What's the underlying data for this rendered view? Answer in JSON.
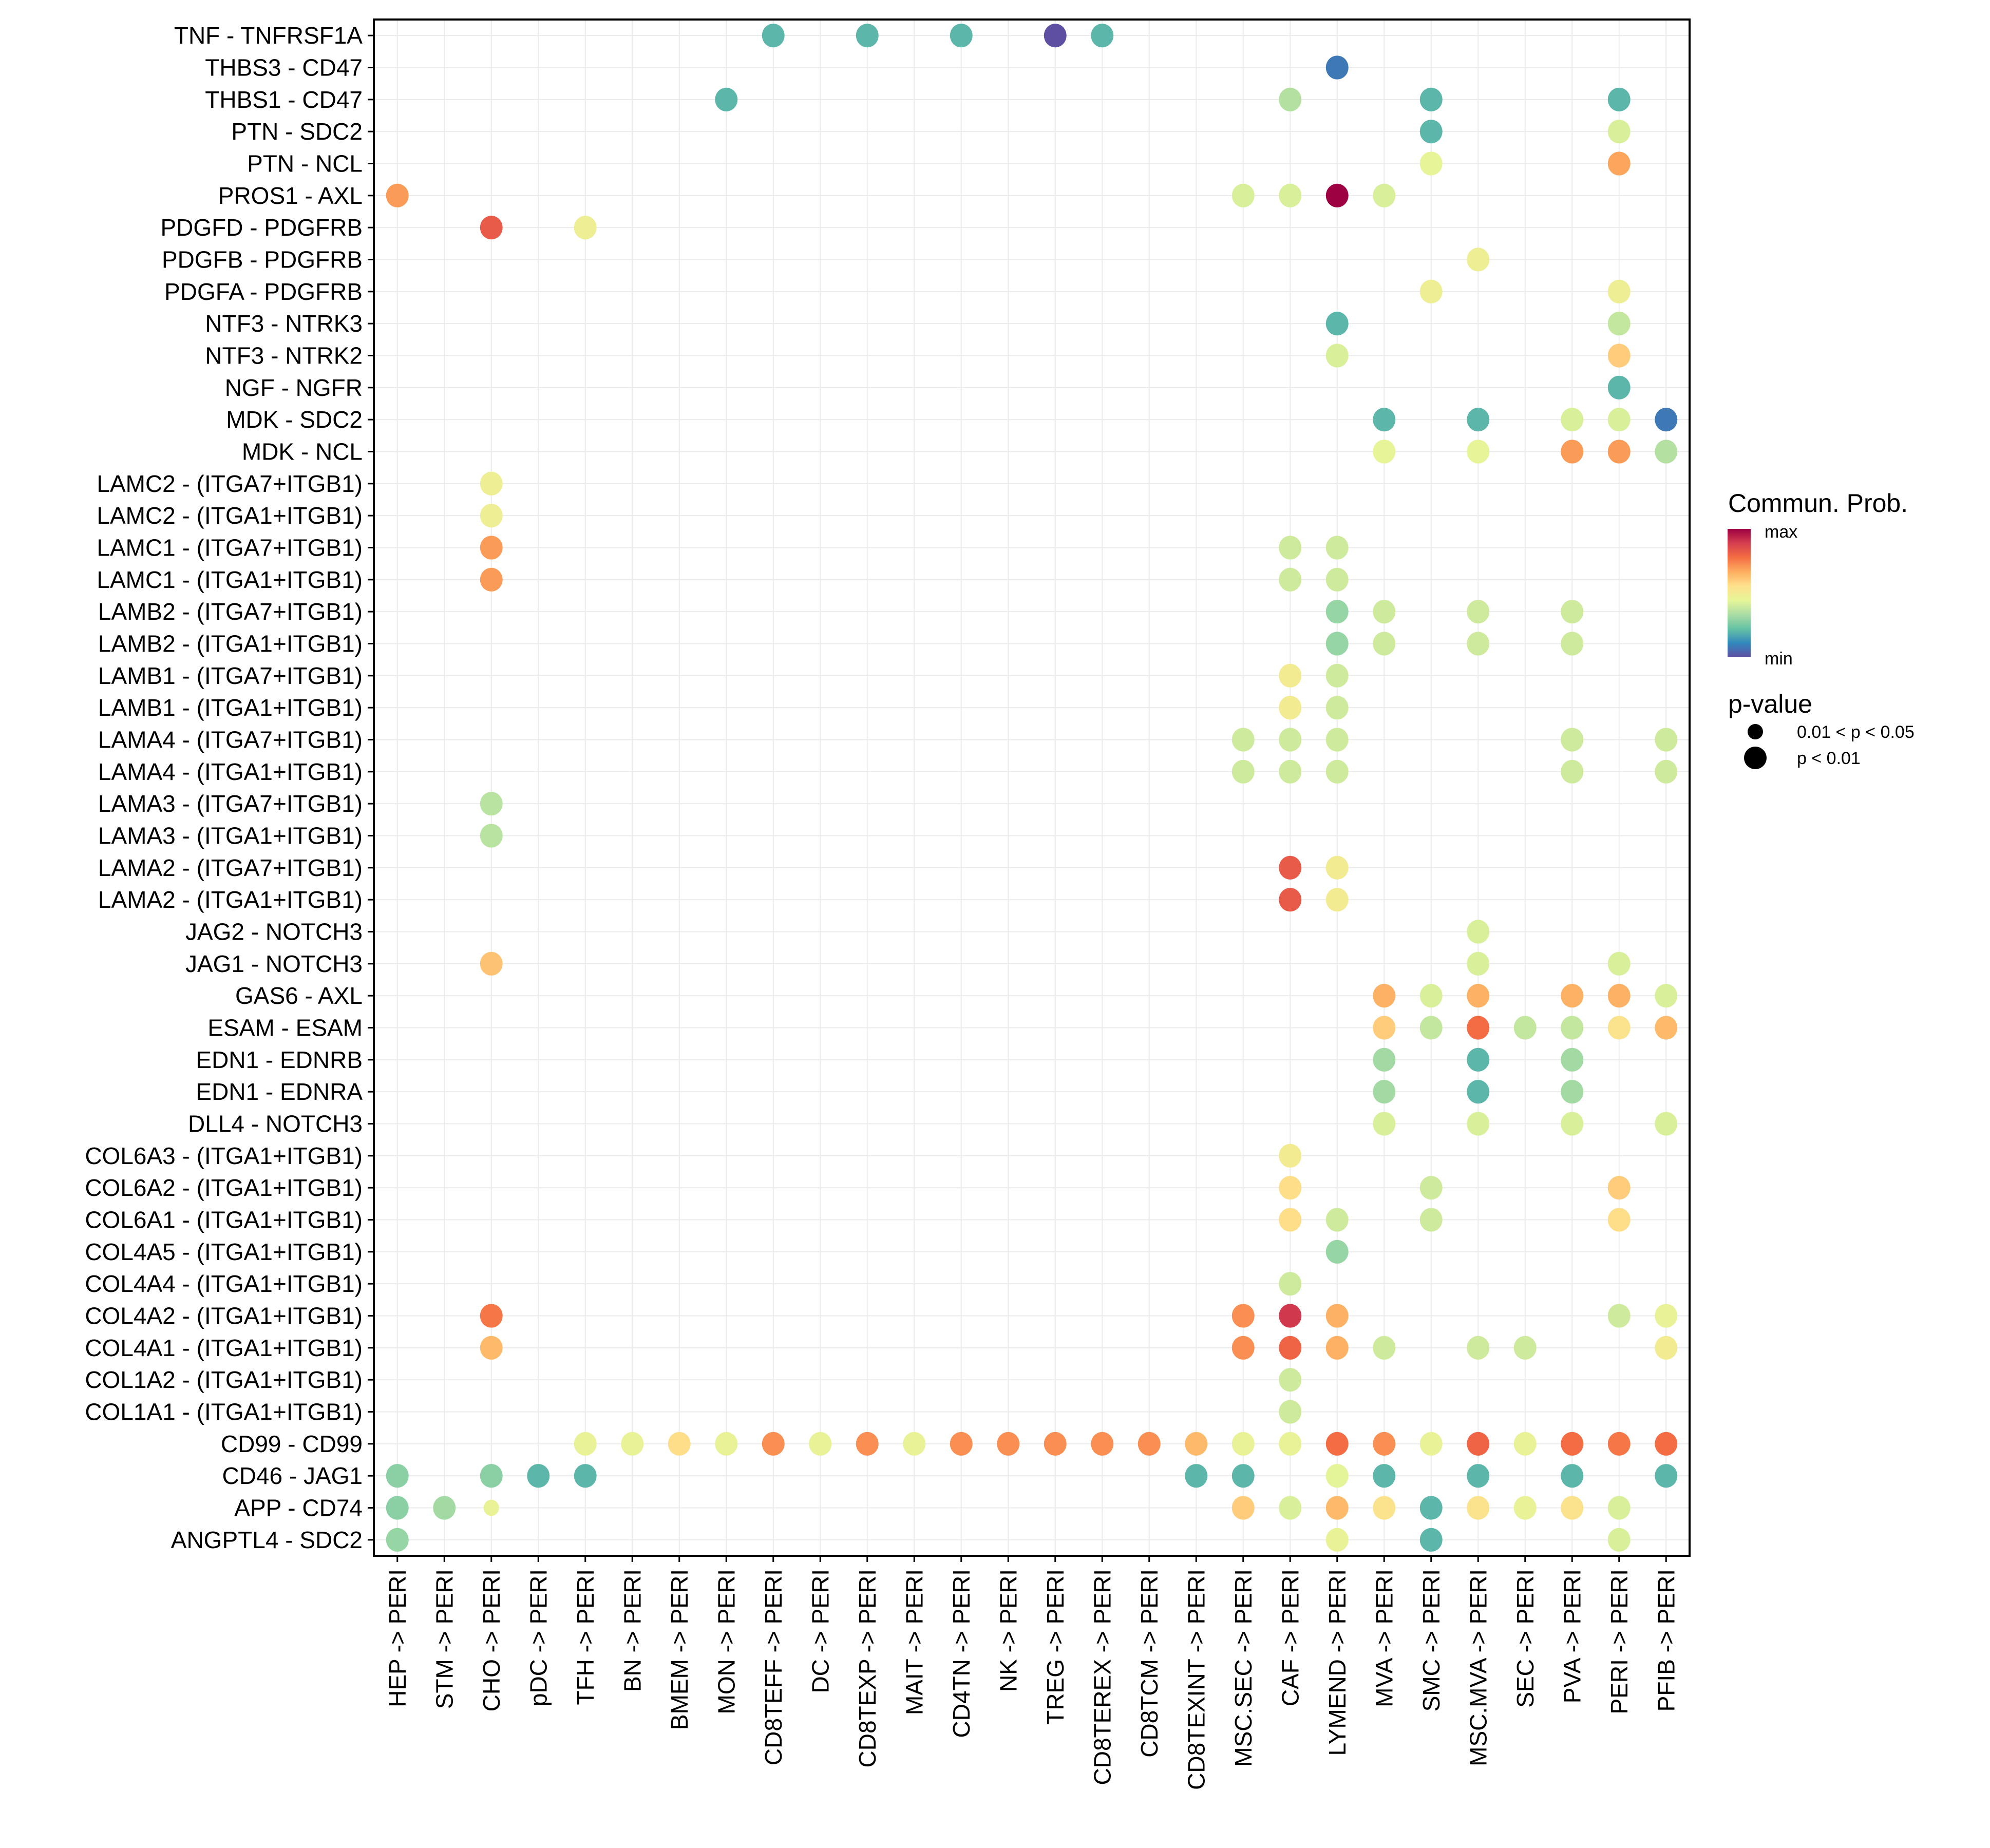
{
  "chart_data": {
    "type": "scatter",
    "subtype": "dot-plot",
    "title": "",
    "xlabel": "",
    "ylabel": "",
    "grid": true,
    "legend_position": "right",
    "x_categories": [
      "HEP -> PERI",
      "STM -> PERI",
      "CHO -> PERI",
      "pDC -> PERI",
      "TFH -> PERI",
      "BN -> PERI",
      "BMEM -> PERI",
      "MON -> PERI",
      "CD8TEFF -> PERI",
      "DC -> PERI",
      "CD8TEXP -> PERI",
      "MAIT -> PERI",
      "CD4TN -> PERI",
      "NK -> PERI",
      "TREG -> PERI",
      "CD8TEREX -> PERI",
      "CD8TCM -> PERI",
      "CD8TEXINT -> PERI",
      "MSC.SEC -> PERI",
      "CAF -> PERI",
      "LYMEND -> PERI",
      "MVA -> PERI",
      "SMC -> PERI",
      "MSC.MVA -> PERI",
      "SEC -> PERI",
      "PVA -> PERI",
      "PERI -> PERI",
      "PFIB -> PERI"
    ],
    "y_categories_top_to_bottom": [
      "TNF - TNFRSF1A",
      "THBS3 - CD47",
      "THBS1 - CD47",
      "PTN - SDC2",
      "PTN - NCL",
      "PROS1 - AXL",
      "PDGFD - PDGFRB",
      "PDGFB - PDGFRB",
      "PDGFA - PDGFRB",
      "NTF3 - NTRK3",
      "NTF3 - NTRK2",
      "NGF - NGFR",
      "MDK - SDC2",
      "MDK - NCL",
      "LAMC2 - (ITGA7+ITGB1)",
      "LAMC2 - (ITGA1+ITGB1)",
      "LAMC1 - (ITGA7+ITGB1)",
      "LAMC1 - (ITGA1+ITGB1)",
      "LAMB2 - (ITGA7+ITGB1)",
      "LAMB2 - (ITGA1+ITGB1)",
      "LAMB1 - (ITGA7+ITGB1)",
      "LAMB1 - (ITGA1+ITGB1)",
      "LAMA4 - (ITGA7+ITGB1)",
      "LAMA4 - (ITGA1+ITGB1)",
      "LAMA3 - (ITGA7+ITGB1)",
      "LAMA3 - (ITGA1+ITGB1)",
      "LAMA2 - (ITGA7+ITGB1)",
      "LAMA2 - (ITGA1+ITGB1)",
      "JAG2 - NOTCH3",
      "JAG1 - NOTCH3",
      "GAS6 - AXL",
      "ESAM - ESAM",
      "EDN1 - EDNRB",
      "EDN1 - EDNRA",
      "DLL4 - NOTCH3",
      "COL6A3 - (ITGA1+ITGB1)",
      "COL6A2 - (ITGA1+ITGB1)",
      "COL6A1 - (ITGA1+ITGB1)",
      "COL4A5 - (ITGA1+ITGB1)",
      "COL4A4 - (ITGA1+ITGB1)",
      "COL4A2 - (ITGA1+ITGB1)",
      "COL4A1 - (ITGA1+ITGB1)",
      "COL1A2 - (ITGA1+ITGB1)",
      "COL1A1 - (ITGA1+ITGB1)",
      "CD99 - CD99",
      "CD46 - JAG1",
      "APP - CD74",
      "ANGPTL4 - SDC2"
    ],
    "value_scale": "relative communication probability, 0 = min, 1 = max",
    "points_note": "each point: [row_index, col_index, prob_0_to_1, pval_class] ; pval_class 1 = '0.01 < p < 0.05', 2 = 'p < 0.01'",
    "points": [
      [
        0,
        8,
        0.2,
        2
      ],
      [
        0,
        10,
        0.2,
        2
      ],
      [
        0,
        12,
        0.2,
        2
      ],
      [
        0,
        14,
        0.0,
        2
      ],
      [
        0,
        15,
        0.2,
        2
      ],
      [
        1,
        20,
        0.08,
        2
      ],
      [
        2,
        7,
        0.2,
        2
      ],
      [
        2,
        19,
        0.35,
        2
      ],
      [
        2,
        22,
        0.2,
        2
      ],
      [
        2,
        26,
        0.2,
        2
      ],
      [
        3,
        22,
        0.2,
        2
      ],
      [
        3,
        26,
        0.42,
        2
      ],
      [
        4,
        22,
        0.45,
        2
      ],
      [
        4,
        26,
        0.68,
        2
      ],
      [
        5,
        0,
        0.7,
        2
      ],
      [
        5,
        18,
        0.42,
        2
      ],
      [
        5,
        19,
        0.42,
        2
      ],
      [
        5,
        20,
        1.0,
        2
      ],
      [
        5,
        21,
        0.42,
        2
      ],
      [
        6,
        2,
        0.82,
        2
      ],
      [
        6,
        4,
        0.48,
        2
      ],
      [
        7,
        23,
        0.48,
        2
      ],
      [
        8,
        22,
        0.48,
        2
      ],
      [
        8,
        26,
        0.48,
        2
      ],
      [
        9,
        20,
        0.2,
        2
      ],
      [
        9,
        26,
        0.38,
        2
      ],
      [
        10,
        20,
        0.42,
        2
      ],
      [
        10,
        26,
        0.6,
        2
      ],
      [
        11,
        26,
        0.2,
        2
      ],
      [
        12,
        21,
        0.2,
        2
      ],
      [
        12,
        23,
        0.2,
        2
      ],
      [
        12,
        25,
        0.42,
        2
      ],
      [
        12,
        26,
        0.42,
        2
      ],
      [
        12,
        27,
        0.08,
        2
      ],
      [
        13,
        21,
        0.45,
        2
      ],
      [
        13,
        23,
        0.45,
        2
      ],
      [
        13,
        25,
        0.7,
        2
      ],
      [
        13,
        26,
        0.7,
        2
      ],
      [
        13,
        27,
        0.35,
        2
      ],
      [
        14,
        2,
        0.48,
        2
      ],
      [
        15,
        2,
        0.48,
        2
      ],
      [
        16,
        2,
        0.7,
        2
      ],
      [
        16,
        19,
        0.4,
        2
      ],
      [
        16,
        20,
        0.4,
        2
      ],
      [
        17,
        2,
        0.7,
        2
      ],
      [
        17,
        19,
        0.4,
        2
      ],
      [
        17,
        20,
        0.4,
        2
      ],
      [
        18,
        20,
        0.3,
        2
      ],
      [
        18,
        21,
        0.4,
        2
      ],
      [
        18,
        23,
        0.4,
        2
      ],
      [
        18,
        25,
        0.4,
        2
      ],
      [
        19,
        20,
        0.3,
        2
      ],
      [
        19,
        21,
        0.4,
        2
      ],
      [
        19,
        23,
        0.4,
        2
      ],
      [
        19,
        25,
        0.4,
        2
      ],
      [
        20,
        19,
        0.5,
        2
      ],
      [
        20,
        20,
        0.4,
        2
      ],
      [
        21,
        19,
        0.5,
        2
      ],
      [
        21,
        20,
        0.4,
        2
      ],
      [
        22,
        18,
        0.4,
        2
      ],
      [
        22,
        19,
        0.4,
        2
      ],
      [
        22,
        20,
        0.4,
        2
      ],
      [
        22,
        25,
        0.4,
        2
      ],
      [
        22,
        27,
        0.4,
        2
      ],
      [
        23,
        18,
        0.4,
        2
      ],
      [
        23,
        19,
        0.4,
        2
      ],
      [
        23,
        20,
        0.4,
        2
      ],
      [
        23,
        25,
        0.4,
        2
      ],
      [
        23,
        27,
        0.4,
        2
      ],
      [
        24,
        2,
        0.36,
        2
      ],
      [
        25,
        2,
        0.36,
        2
      ],
      [
        26,
        19,
        0.82,
        2
      ],
      [
        26,
        20,
        0.5,
        2
      ],
      [
        27,
        19,
        0.82,
        2
      ],
      [
        27,
        20,
        0.5,
        2
      ],
      [
        28,
        23,
        0.42,
        2
      ],
      [
        29,
        2,
        0.62,
        2
      ],
      [
        29,
        23,
        0.42,
        2
      ],
      [
        29,
        26,
        0.42,
        2
      ],
      [
        30,
        21,
        0.66,
        2
      ],
      [
        30,
        22,
        0.42,
        2
      ],
      [
        30,
        23,
        0.66,
        2
      ],
      [
        30,
        25,
        0.66,
        2
      ],
      [
        30,
        26,
        0.66,
        2
      ],
      [
        30,
        27,
        0.42,
        2
      ],
      [
        31,
        21,
        0.6,
        2
      ],
      [
        31,
        22,
        0.38,
        2
      ],
      [
        31,
        23,
        0.78,
        2
      ],
      [
        31,
        24,
        0.38,
        2
      ],
      [
        31,
        25,
        0.38,
        2
      ],
      [
        31,
        26,
        0.54,
        2
      ],
      [
        31,
        27,
        0.64,
        2
      ],
      [
        32,
        21,
        0.32,
        2
      ],
      [
        32,
        23,
        0.2,
        2
      ],
      [
        32,
        25,
        0.32,
        2
      ],
      [
        33,
        21,
        0.32,
        2
      ],
      [
        33,
        23,
        0.2,
        2
      ],
      [
        33,
        25,
        0.32,
        2
      ],
      [
        34,
        21,
        0.42,
        2
      ],
      [
        34,
        23,
        0.42,
        2
      ],
      [
        34,
        25,
        0.42,
        2
      ],
      [
        34,
        27,
        0.42,
        2
      ],
      [
        35,
        19,
        0.5,
        2
      ],
      [
        36,
        19,
        0.56,
        2
      ],
      [
        36,
        22,
        0.4,
        2
      ],
      [
        36,
        26,
        0.6,
        2
      ],
      [
        37,
        19,
        0.56,
        2
      ],
      [
        37,
        20,
        0.4,
        2
      ],
      [
        37,
        22,
        0.4,
        2
      ],
      [
        37,
        26,
        0.56,
        2
      ],
      [
        38,
        20,
        0.3,
        2
      ],
      [
        39,
        19,
        0.4,
        2
      ],
      [
        40,
        2,
        0.76,
        2
      ],
      [
        40,
        18,
        0.72,
        2
      ],
      [
        40,
        19,
        0.9,
        2
      ],
      [
        40,
        20,
        0.66,
        2
      ],
      [
        40,
        26,
        0.4,
        2
      ],
      [
        40,
        27,
        0.46,
        2
      ],
      [
        41,
        2,
        0.64,
        2
      ],
      [
        41,
        18,
        0.72,
        2
      ],
      [
        41,
        19,
        0.8,
        2
      ],
      [
        41,
        20,
        0.66,
        2
      ],
      [
        41,
        21,
        0.4,
        2
      ],
      [
        41,
        23,
        0.4,
        2
      ],
      [
        41,
        24,
        0.4,
        2
      ],
      [
        41,
        27,
        0.5,
        2
      ],
      [
        42,
        19,
        0.4,
        2
      ],
      [
        43,
        19,
        0.4,
        2
      ],
      [
        44,
        4,
        0.46,
        2
      ],
      [
        44,
        5,
        0.46,
        2
      ],
      [
        44,
        6,
        0.56,
        2
      ],
      [
        44,
        7,
        0.46,
        2
      ],
      [
        44,
        8,
        0.72,
        2
      ],
      [
        44,
        9,
        0.46,
        2
      ],
      [
        44,
        10,
        0.72,
        2
      ],
      [
        44,
        11,
        0.46,
        2
      ],
      [
        44,
        12,
        0.72,
        2
      ],
      [
        44,
        13,
        0.72,
        2
      ],
      [
        44,
        14,
        0.72,
        2
      ],
      [
        44,
        15,
        0.72,
        2
      ],
      [
        44,
        16,
        0.72,
        2
      ],
      [
        44,
        17,
        0.64,
        2
      ],
      [
        44,
        18,
        0.46,
        2
      ],
      [
        44,
        19,
        0.46,
        2
      ],
      [
        44,
        20,
        0.78,
        2
      ],
      [
        44,
        21,
        0.72,
        2
      ],
      [
        44,
        22,
        0.46,
        2
      ],
      [
        44,
        23,
        0.8,
        2
      ],
      [
        44,
        24,
        0.46,
        2
      ],
      [
        44,
        25,
        0.78,
        2
      ],
      [
        44,
        26,
        0.76,
        2
      ],
      [
        44,
        27,
        0.78,
        2
      ],
      [
        45,
        0,
        0.28,
        2
      ],
      [
        45,
        2,
        0.28,
        2
      ],
      [
        45,
        3,
        0.2,
        2
      ],
      [
        45,
        4,
        0.2,
        2
      ],
      [
        45,
        17,
        0.2,
        2
      ],
      [
        45,
        18,
        0.2,
        2
      ],
      [
        45,
        20,
        0.44,
        2
      ],
      [
        45,
        21,
        0.2,
        2
      ],
      [
        45,
        23,
        0.2,
        2
      ],
      [
        45,
        25,
        0.2,
        2
      ],
      [
        45,
        27,
        0.2,
        2
      ],
      [
        46,
        0,
        0.28,
        2
      ],
      [
        46,
        1,
        0.32,
        2
      ],
      [
        46,
        2,
        0.46,
        1
      ],
      [
        46,
        18,
        0.6,
        2
      ],
      [
        46,
        19,
        0.42,
        2
      ],
      [
        46,
        20,
        0.64,
        2
      ],
      [
        46,
        21,
        0.54,
        2
      ],
      [
        46,
        22,
        0.2,
        2
      ],
      [
        46,
        23,
        0.54,
        2
      ],
      [
        46,
        24,
        0.46,
        2
      ],
      [
        46,
        25,
        0.54,
        2
      ],
      [
        46,
        26,
        0.42,
        2
      ],
      [
        47,
        0,
        0.3,
        2
      ],
      [
        47,
        20,
        0.46,
        2
      ],
      [
        47,
        22,
        0.2,
        2
      ],
      [
        47,
        26,
        0.42,
        2
      ]
    ],
    "legend": {
      "color_title": "Commun. Prob.",
      "color_max_label": "max",
      "color_min_label": "min",
      "color_stops": [
        "#5E4FA2",
        "#3288BD",
        "#66C2A5",
        "#ABDDA4",
        "#E6F598",
        "#FEE08B",
        "#FDAE61",
        "#F46D43",
        "#D53E4F",
        "#9E0142"
      ],
      "size_title": "p-value",
      "size_entries": [
        {
          "label": "0.01 < p < 0.05",
          "class": 1
        },
        {
          "label": "p < 0.01",
          "class": 2
        }
      ]
    }
  }
}
